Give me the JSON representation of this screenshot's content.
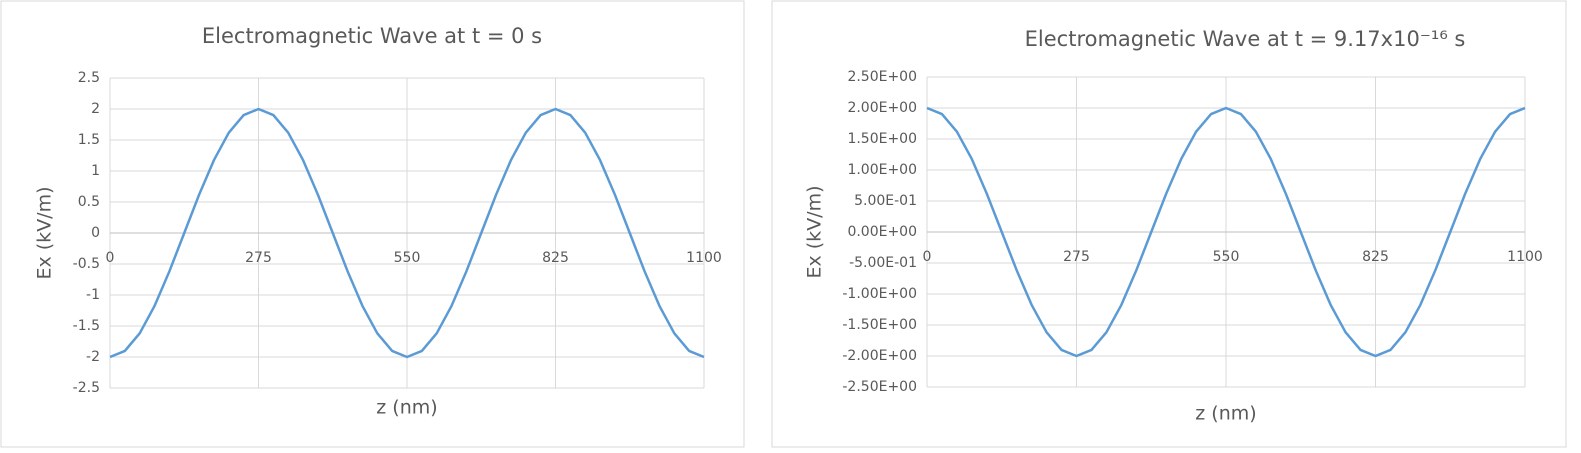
{
  "chart_data": [
    {
      "type": "line",
      "title": "Electromagnetic Wave at t = 0 s",
      "x_label": "z (nm)",
      "y_label": "Ex (kV/m)",
      "color": "#5b9bd5",
      "grid": true,
      "x": [
        0,
        27.5,
        55,
        82.5,
        110,
        137.5,
        165,
        192.5,
        220,
        247.5,
        275,
        302.5,
        330,
        357.5,
        385,
        412.5,
        440,
        467.5,
        495,
        522.5,
        550,
        577.5,
        605,
        632.5,
        660,
        687.5,
        715,
        742.5,
        770,
        797.5,
        825,
        852.5,
        880,
        907.5,
        935,
        962.5,
        990,
        1017.5,
        1045,
        1072.5,
        1100
      ],
      "values": [
        -2,
        -1.902,
        -1.618,
        -1.176,
        -0.618,
        0,
        0.618,
        1.176,
        1.618,
        1.902,
        2,
        1.902,
        1.618,
        1.176,
        0.618,
        0,
        -0.618,
        -1.176,
        -1.618,
        -1.902,
        -2,
        -1.902,
        -1.618,
        -1.176,
        -0.618,
        0,
        0.618,
        1.176,
        1.618,
        1.902,
        2,
        1.902,
        1.618,
        1.176,
        0.618,
        0,
        -0.618,
        -1.176,
        -1.618,
        -1.902,
        -2
      ],
      "xlim": [
        0,
        1100
      ],
      "xticks": [
        0,
        275,
        550,
        825,
        1100
      ],
      "ylim": [
        -2.5,
        2.5
      ],
      "yticks": [
        -2.5,
        -2,
        -1.5,
        -1,
        -0.5,
        0,
        0.5,
        1,
        1.5,
        2,
        2.5
      ]
    },
    {
      "type": "line",
      "title": "Electromagnetic Wave at t = 9.17x10⁻¹⁶ s",
      "x_label": "z (nm)",
      "y_label": "Ex (kV/m)",
      "color": "#5b9bd5",
      "grid": true,
      "x": [
        0,
        27.5,
        55,
        82.5,
        110,
        137.5,
        165,
        192.5,
        220,
        247.5,
        275,
        302.5,
        330,
        357.5,
        385,
        412.5,
        440,
        467.5,
        495,
        522.5,
        550,
        577.5,
        605,
        632.5,
        660,
        687.5,
        715,
        742.5,
        770,
        797.5,
        825,
        852.5,
        880,
        907.5,
        935,
        962.5,
        990,
        1017.5,
        1045,
        1072.5,
        1100
      ],
      "values": [
        2,
        1.902,
        1.618,
        1.176,
        0.618,
        0,
        -0.618,
        -1.176,
        -1.618,
        -1.902,
        -2,
        -1.902,
        -1.618,
        -1.176,
        -0.618,
        0,
        0.618,
        1.176,
        1.618,
        1.902,
        2,
        1.902,
        1.618,
        1.176,
        0.618,
        0,
        -0.618,
        -1.176,
        -1.618,
        -1.902,
        -2,
        -1.902,
        -1.618,
        -1.176,
        -0.618,
        0,
        0.618,
        1.176,
        1.618,
        1.902,
        2
      ],
      "xlim": [
        0,
        1100
      ],
      "xticks": [
        0,
        275,
        550,
        825,
        1100
      ],
      "ylim": [
        -2.5,
        2.5
      ],
      "yticks": [
        {
          "value": -2.5,
          "label": "-2.50E+00"
        },
        {
          "value": -2,
          "label": "-2.00E+00"
        },
        {
          "value": -1.5,
          "label": "-1.50E+00"
        },
        {
          "value": -1,
          "label": "-1.00E+00"
        },
        {
          "value": -0.5,
          "label": "-5.00E-01"
        },
        {
          "value": 0,
          "label": "0.00E+00"
        },
        {
          "value": 0.5,
          "label": "5.00E-01"
        },
        {
          "value": 1,
          "label": "1.00E+00"
        },
        {
          "value": 1.5,
          "label": "1.50E+00"
        },
        {
          "value": 2,
          "label": "2.00E+00"
        },
        {
          "value": 2.5,
          "label": "2.50E+00"
        }
      ]
    }
  ]
}
